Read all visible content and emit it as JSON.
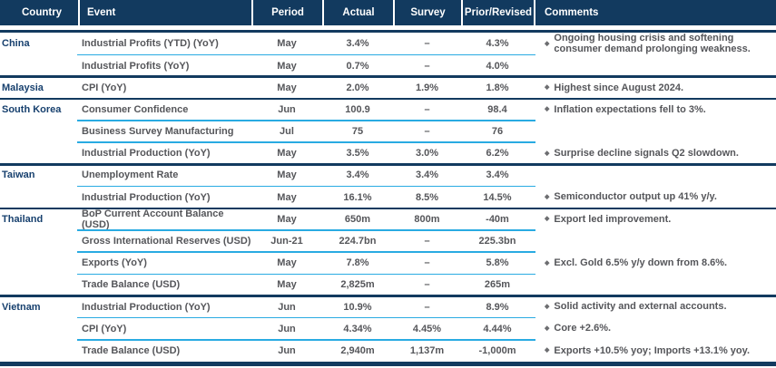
{
  "table": {
    "columns": [
      "Country",
      "Event",
      "Period",
      "Actual",
      "Survey",
      "Prior/Revised",
      "Comments"
    ],
    "bullet": "◆",
    "rows": [
      {
        "country": "China",
        "event": "Industrial Profits (YTD) (YoY)",
        "period": "May",
        "actual": "3.4%",
        "survey": "–",
        "prior": "4.3%",
        "comment": "Ongoing housing crisis and softening consumer demand prolonging weakness.",
        "divider": "none"
      },
      {
        "country": "",
        "event": "Industrial Profits (YoY)",
        "period": "May",
        "actual": "0.7%",
        "survey": "–",
        "prior": "4.0%",
        "comment": "",
        "divider": "cyan"
      },
      {
        "country": "Malaysia",
        "event": "CPI (YoY)",
        "period": "May",
        "actual": "2.0%",
        "survey": "1.9%",
        "prior": "1.8%",
        "comment": "Highest since August 2024.",
        "divider": "navy"
      },
      {
        "country": "South Korea",
        "event": "Consumer Confidence",
        "period": "Jun",
        "actual": "100.9",
        "survey": "–",
        "prior": "98.4",
        "comment": "Inflation expectations fell to 3%.",
        "divider": "navy"
      },
      {
        "country": "",
        "event": "Business Survey Manufacturing",
        "period": "Jul",
        "actual": "75",
        "survey": "–",
        "prior": "76",
        "comment": "",
        "divider": "cyan"
      },
      {
        "country": "",
        "event": "Industrial Production (YoY)",
        "period": "May",
        "actual": "3.5%",
        "survey": "3.0%",
        "prior": "6.2%",
        "comment": "Surprise decline signals Q2 slowdown.",
        "divider": "cyan"
      },
      {
        "country": "Taiwan",
        "event": "Unemployment Rate",
        "period": "May",
        "actual": "3.4%",
        "survey": "3.4%",
        "prior": "3.4%",
        "comment": "",
        "divider": "navy"
      },
      {
        "country": "",
        "event": "Industrial Production (YoY)",
        "period": "May",
        "actual": "16.1%",
        "survey": "8.5%",
        "prior": "14.5%",
        "comment": "Semiconductor output up 41% y/y.",
        "divider": "cyan"
      },
      {
        "country": "Thailand",
        "event": "BoP Current Account Balance (USD)",
        "period": "May",
        "actual": "650m",
        "survey": "800m",
        "prior": "-40m",
        "comment": "Export led improvement.",
        "divider": "navy"
      },
      {
        "country": "",
        "event": "Gross International Reserves (USD)",
        "period": "Jun-21",
        "actual": "224.7bn",
        "survey": "–",
        "prior": "225.3bn",
        "comment": "",
        "divider": "cyan"
      },
      {
        "country": "",
        "event": "Exports (YoY)",
        "period": "May",
        "actual": "7.8%",
        "survey": "–",
        "prior": "5.8%",
        "comment": "Excl. Gold 6.5% y/y down from 8.6%.",
        "divider": "cyan"
      },
      {
        "country": "",
        "event": "Trade Balance (USD)",
        "period": "May",
        "actual": "2,825m",
        "survey": "–",
        "prior": "265m",
        "comment": "",
        "divider": "cyan"
      },
      {
        "country": "Vietnam",
        "event": "Industrial Production (YoY)",
        "period": "Jun",
        "actual": "10.9%",
        "survey": "–",
        "prior": "8.9%",
        "comment": "Solid activity and external accounts.",
        "divider": "navy"
      },
      {
        "country": "",
        "event": "CPI (YoY)",
        "period": "Jun",
        "actual": "4.34%",
        "survey": "4.45%",
        "prior": "4.44%",
        "comment": "Core +2.6%.",
        "divider": "cyan"
      },
      {
        "country": "",
        "event": "Trade Balance (USD)",
        "period": "Jun",
        "actual": "2,940m",
        "survey": "1,137m",
        "prior": "-1,000m",
        "comment": "Exports +10.5% yoy; Imports +13.1% yoy.",
        "divider": "cyan"
      }
    ],
    "colors": {
      "header_bg": "#123a5f",
      "country_text": "#17406e",
      "body_text": "#55565a",
      "group_rule": "#123a5f",
      "row_rule": "#29abe2",
      "header_text": "#ffffff"
    }
  }
}
